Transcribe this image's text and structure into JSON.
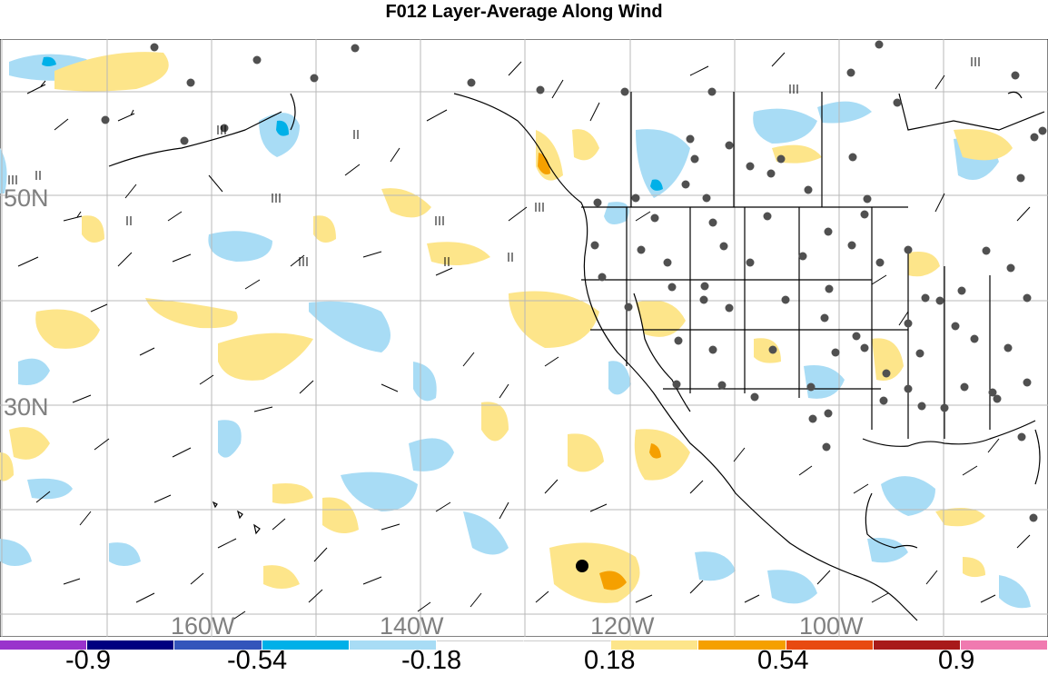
{
  "title": "F012 Layer-Average Along Wind",
  "map": {
    "lat_labels": [
      "50N",
      "30N"
    ],
    "lon_labels": [
      "160W",
      "140W",
      "120W",
      "100W"
    ],
    "label_color": "#808080",
    "grid_color": "#b8b8b8",
    "land_outline_color": "#000000",
    "station_marker_color": "#505050",
    "highlight_station_marker": "black-dot"
  },
  "colorbar": {
    "colors": [
      "#9933cc",
      "#000080",
      "#3355bb",
      "#00b0e8",
      "#a8dcf5",
      "#ffffff",
      "#ffffff",
      "#fde58a",
      "#f5a000",
      "#e84a10",
      "#a81a1a",
      "#f07ab0"
    ],
    "tick_labels": [
      "-0.9",
      "-0.54",
      "-0.18",
      "0.18",
      "0.54",
      "0.9"
    ]
  }
}
